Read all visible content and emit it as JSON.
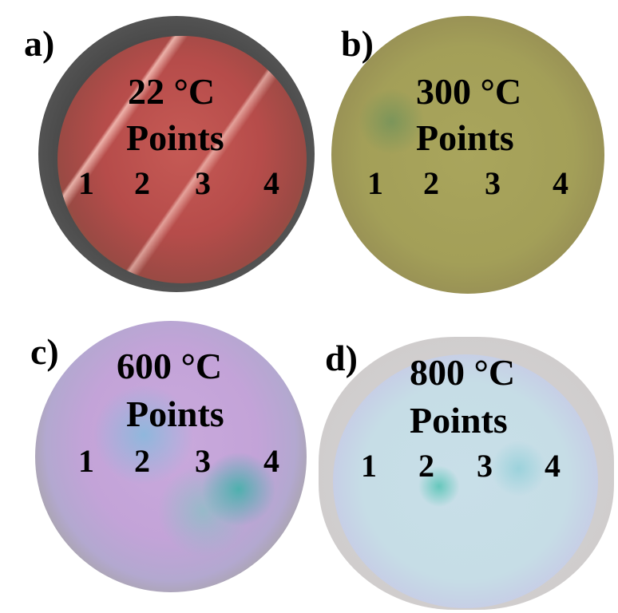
{
  "panels": [
    {
      "letter": "a)",
      "temperature": "22 °C",
      "points_label": "Points",
      "points": [
        "1",
        "2",
        "3",
        "4"
      ]
    },
    {
      "letter": "b)",
      "temperature": "300 °C",
      "points_label": "Points",
      "points": [
        "1",
        "2",
        "3",
        "4"
      ]
    },
    {
      "letter": "c)",
      "temperature": "600 °C",
      "points_label": "Points",
      "points": [
        "1",
        "2",
        "3",
        "4"
      ]
    },
    {
      "letter": "d)",
      "temperature": "800 °C",
      "points_label": "Points",
      "points": [
        "1",
        "2",
        "3",
        "4"
      ]
    }
  ]
}
